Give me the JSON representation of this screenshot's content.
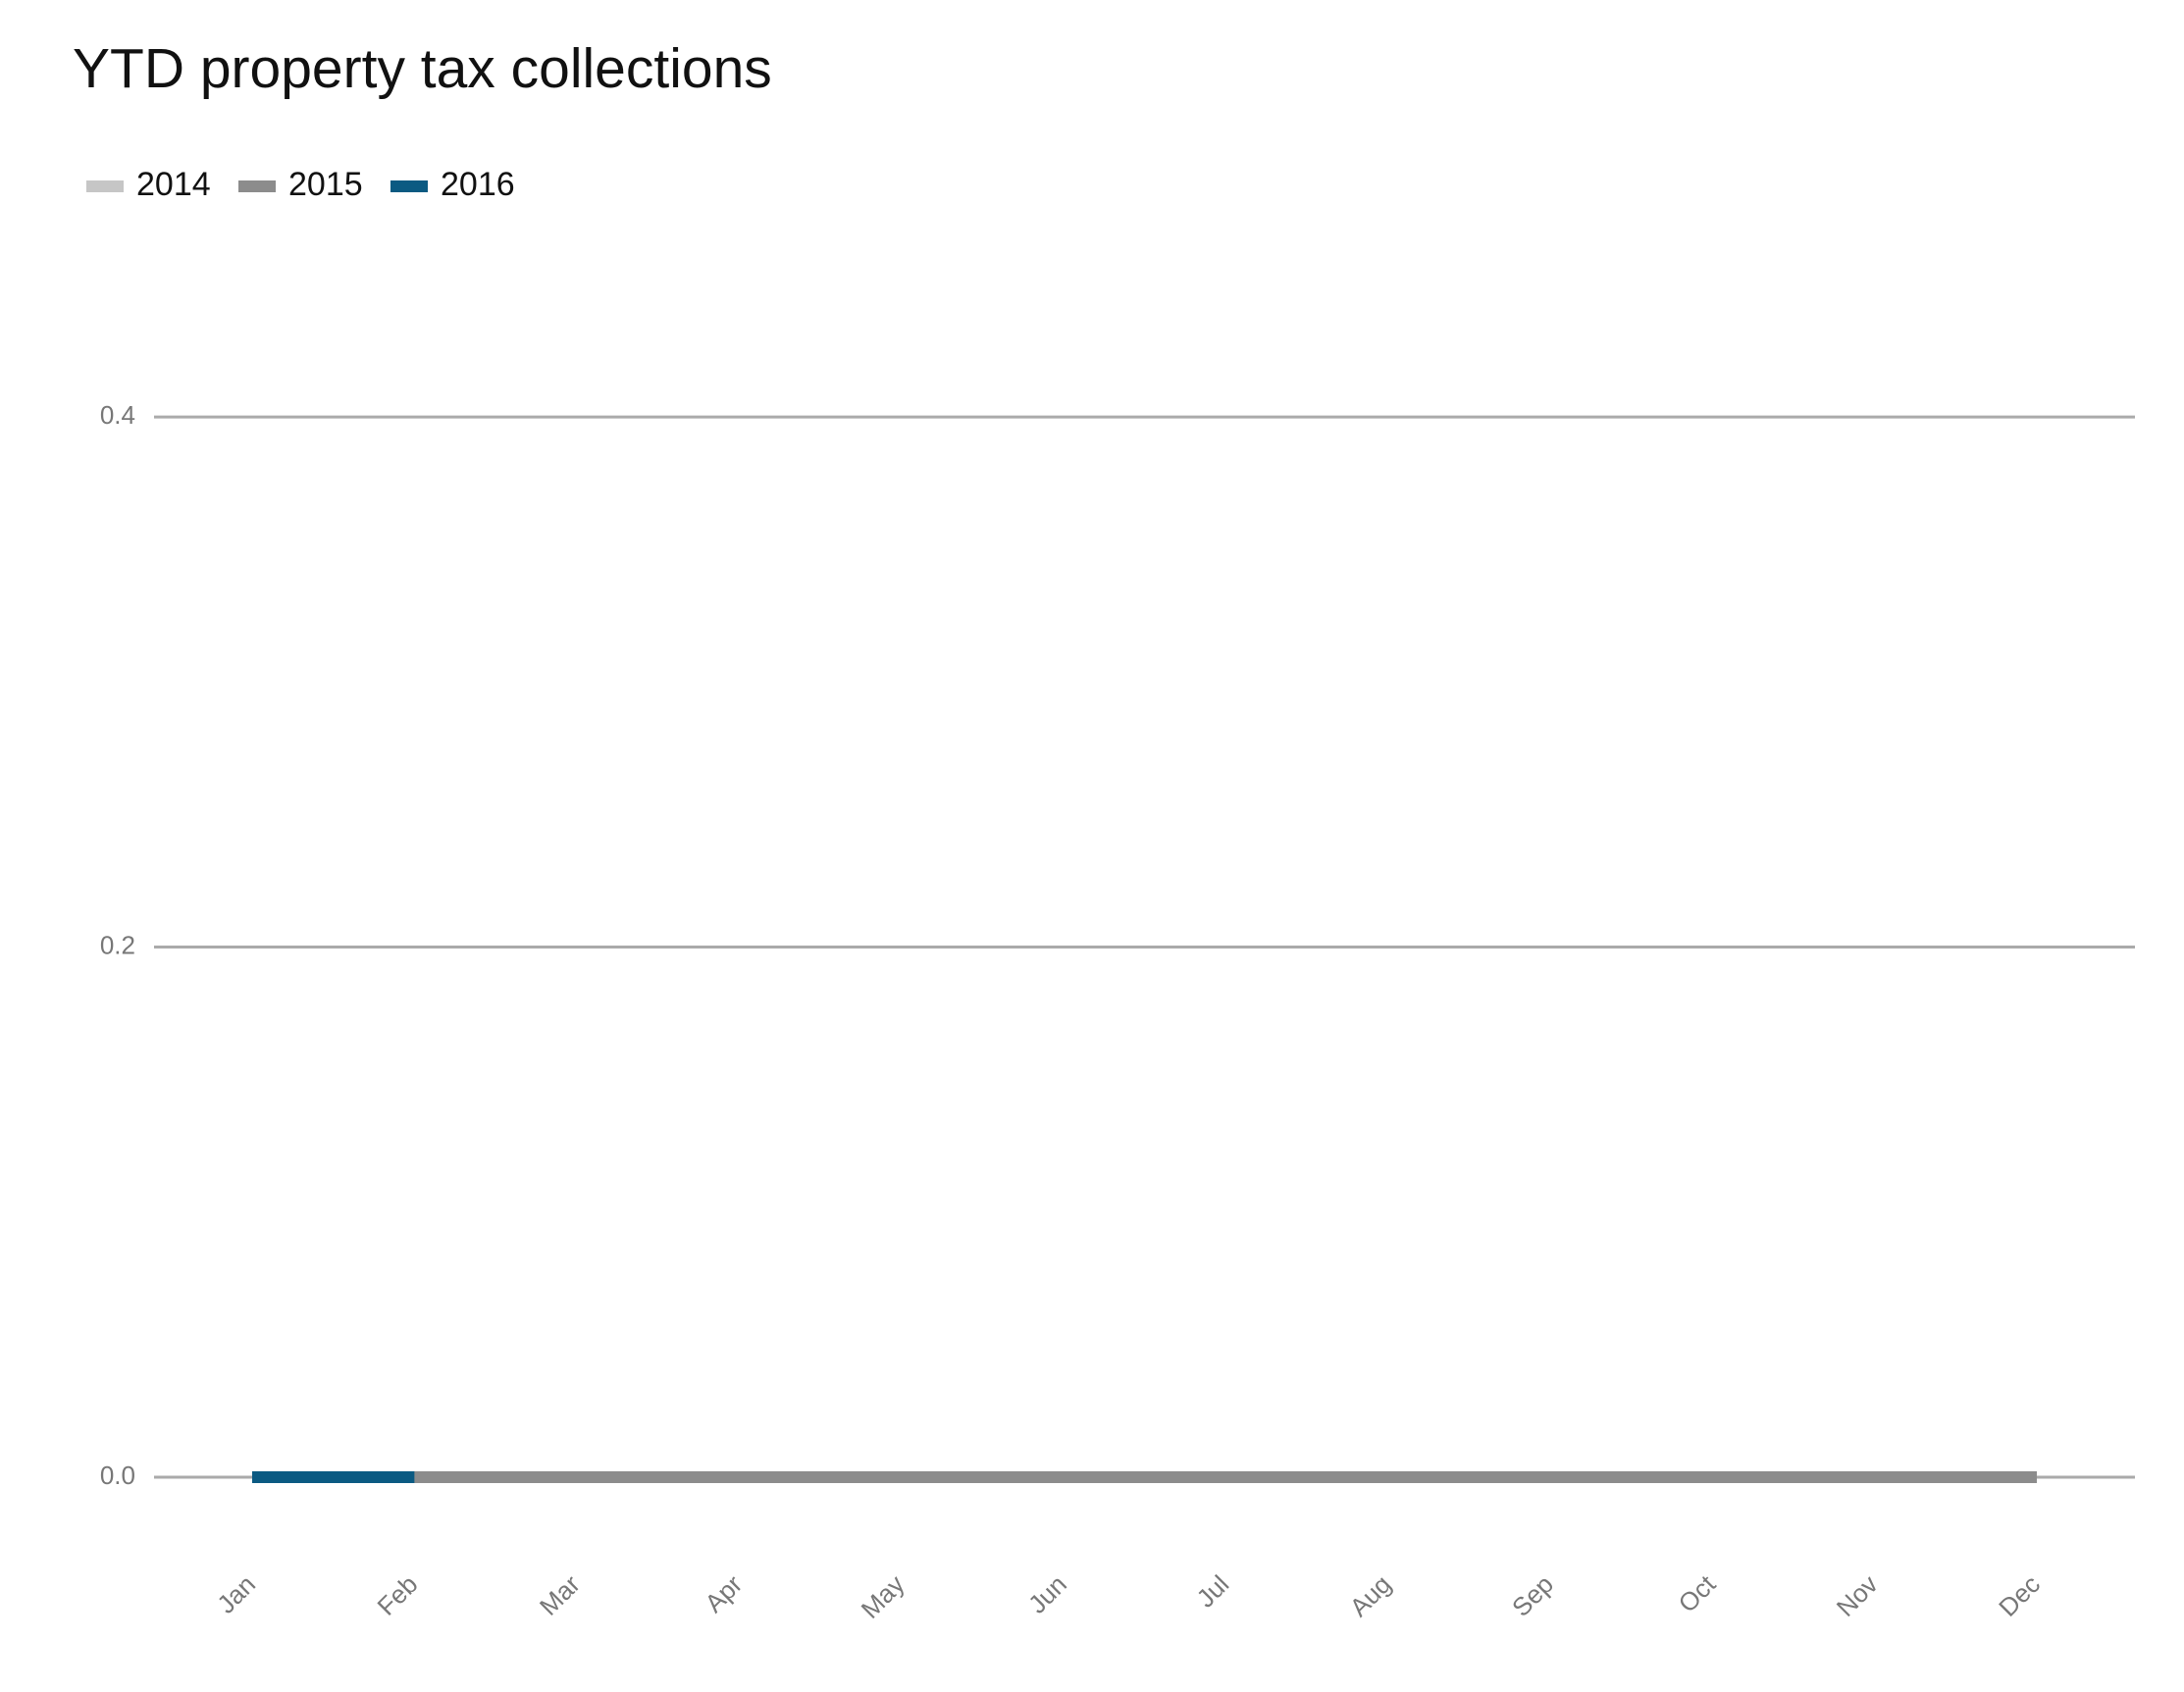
{
  "chart_data": {
    "type": "line",
    "title": "YTD property tax collections",
    "categories": [
      "Jan",
      "Feb",
      "Mar",
      "Apr",
      "May",
      "Jun",
      "Jul",
      "Aug",
      "Sep",
      "Oct",
      "Nov",
      "Dec"
    ],
    "series": [
      {
        "name": "2014",
        "color": "#c6c6c6",
        "values": [
          0,
          0,
          0,
          0,
          0,
          0,
          0,
          0,
          0,
          0,
          0,
          0
        ]
      },
      {
        "name": "2015",
        "color": "#8c8c8c",
        "values": [
          0,
          0,
          0,
          0,
          0,
          0,
          0,
          0,
          0,
          0,
          0,
          0
        ]
      },
      {
        "name": "2016",
        "color": "#0b5a82",
        "values": [
          0,
          0,
          null,
          null,
          null,
          null,
          null,
          null,
          null,
          null,
          null,
          null
        ]
      }
    ],
    "ylim": [
      -0.02,
      0.45
    ],
    "yticks": [
      {
        "value": 0,
        "label": "0.0"
      },
      0.2,
      0.4
    ],
    "grid": true,
    "legend": "top-left"
  }
}
